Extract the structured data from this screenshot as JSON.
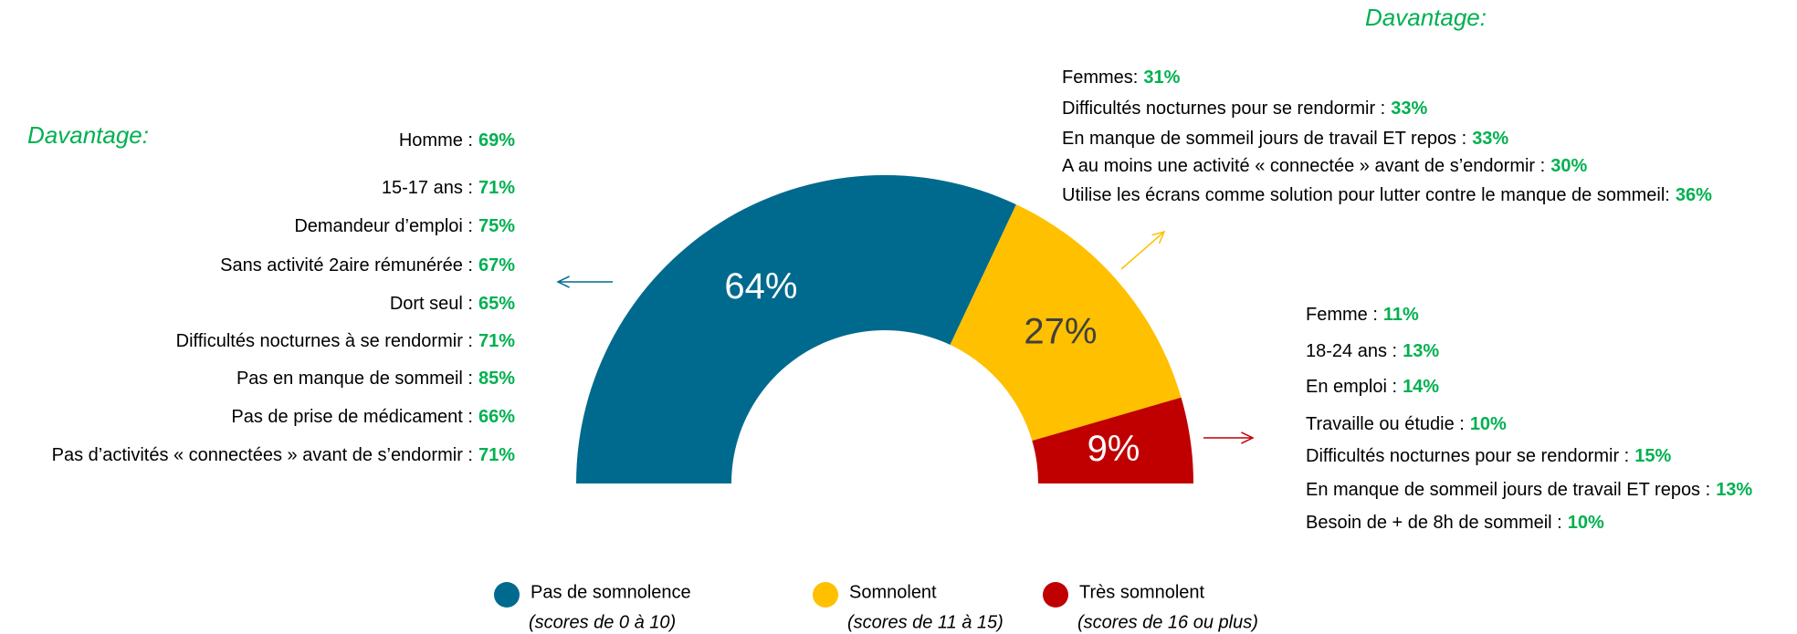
{
  "chart_data": {
    "type": "pie",
    "half": true,
    "categories": [
      "Pas de somnolence",
      "Somnolent",
      "Très somnolent"
    ],
    "sublabels": [
      "(scores de 0 à 10)",
      "(scores de 11 à 15)",
      "(scores de 16 ou plus)"
    ],
    "values": [
      64,
      27,
      9
    ],
    "value_labels": [
      "64%",
      "27%",
      "9%"
    ],
    "colors": [
      "#006a8e",
      "#ffc000",
      "#c00000"
    ],
    "annotations": [
      {
        "heading": "Davantage:",
        "items": [
          {
            "label": "Homme :",
            "value": "69%"
          },
          {
            "label": "15-17 ans :",
            "value": "71%"
          },
          {
            "label": "Demandeur d’emploi :",
            "value": "75%"
          },
          {
            "label": "Sans activité 2aire rémunérée :",
            "value": "67%"
          },
          {
            "label": "Dort seul :",
            "value": "65%"
          },
          {
            "label": "Difficultés nocturnes à se rendormir :",
            "value": "71%"
          },
          {
            "label": "Pas en manque de sommeil :",
            "value": "85%"
          },
          {
            "label": "Pas de prise de médicament :",
            "value": "66%"
          },
          {
            "label": "Pas d’activités « connectées » avant de s’endormir :",
            "value": "71%"
          }
        ]
      },
      {
        "heading": "Davantage:",
        "items": [
          {
            "label": "Femmes:",
            "value": "31%"
          },
          {
            "label": "Difficultés nocturnes pour se rendormir :",
            "value": "33%"
          },
          {
            "label": "En manque de sommeil jours de travail ET repos :",
            "value": "33%"
          },
          {
            "label": "A au moins une activité « connectée » avant de s’endormir :",
            "value": "30%"
          },
          {
            "label": "Utilise les écrans comme solution pour lutter contre le manque de sommeil:",
            "value": "36%"
          }
        ]
      },
      {
        "items": [
          {
            "label": "Femme :",
            "value": "11%"
          },
          {
            "label": "18-24 ans :",
            "value": "13%"
          },
          {
            "label": "En emploi :",
            "value": "14%"
          },
          {
            "label": "Travaille ou étudie :",
            "value": "10%"
          },
          {
            "label": "Difficultés nocturnes pour se rendormir :",
            "value": "15%"
          },
          {
            "label": "En manque de sommeil jours de travail ET repos :",
            "value": "13%"
          },
          {
            "label": "Besoin de + de 8h de sommeil :",
            "value": "10%"
          }
        ]
      }
    ]
  }
}
